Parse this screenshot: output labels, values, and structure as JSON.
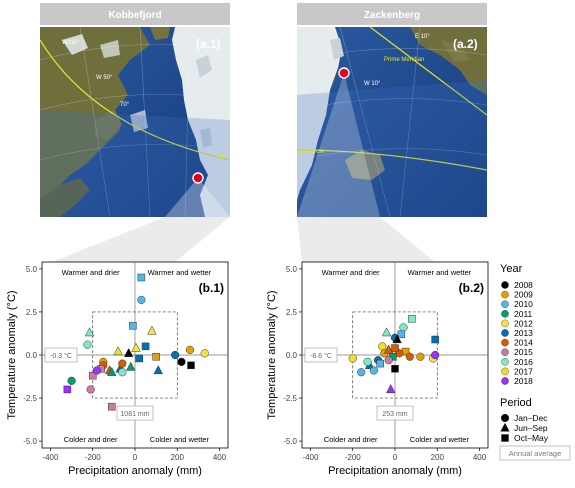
{
  "colors": {
    "years": {
      "2008": "#000000",
      "2009": "#e69f00",
      "2010": "#56b4e9",
      "2011": "#009e73",
      "2012": "#f0e442",
      "2013": "#0072b2",
      "2014": "#d55e00",
      "2015": "#cc79a7",
      "2016": "#7ee8c8",
      "2017": "#f0e020",
      "2018": "#9b30ff"
    },
    "site_marker": "#e8001c",
    "strip": "#c8c8c8",
    "map_land": "#6e6f3d",
    "map_sea": "#1d4a8c",
    "map_ice": "#e6ebee",
    "lines": "#e6e62c"
  },
  "panels": [
    {
      "site": "Kobbefjord",
      "map_label": "(a.1)",
      "map_annotations": [
        "W110°",
        "W 50°",
        "70°",
        "An"
      ],
      "chart_label": "(b.1)",
      "avg_temperature": "-0.3 °C",
      "avg_precipitation": "1081 mm",
      "map_type": "greenland_west"
    },
    {
      "site": "Zackenberg",
      "map_label": "(a.2)",
      "map_annotations": [
        "E 10°",
        "Prime Meridian",
        "W 10°",
        "ctic Circle"
      ],
      "chart_label": "(b.2)",
      "avg_temperature": "-8.6 °C",
      "avg_precipitation": "253 mm",
      "map_type": "greenland_east"
    }
  ],
  "quadrant_labels": {
    "top_left": "Warmer and drier",
    "top_right": "Warmer and wetter",
    "bottom_left": "Colder and drier",
    "bottom_right": "Colder and wetter"
  },
  "legend": {
    "year_title": "Year",
    "years": [
      "2008",
      "2009",
      "2010",
      "2011",
      "2012",
      "2013",
      "2014",
      "2015",
      "2016",
      "2017",
      "2018"
    ],
    "period_title": "Period",
    "periods": [
      {
        "label": "Jan–Dec",
        "shape": "circle"
      },
      {
        "label": "Jun–Sep",
        "shape": "triangle"
      },
      {
        "label": "Oct–May",
        "shape": "square"
      }
    ],
    "annual_average": "Annual average"
  },
  "chart_data": [
    {
      "type": "scatter",
      "site": "Kobbefjord",
      "xlabel": "Precipitation anomaly (mm)",
      "ylabel": "Temperature anomaly (°C)",
      "xlim": [
        -440,
        440
      ],
      "ylim": [
        -5.4,
        5.4
      ],
      "xticks": [
        -400,
        -200,
        0,
        200,
        400
      ],
      "yticks": [
        -5.0,
        -2.5,
        0.0,
        2.5,
        5.0
      ],
      "ytick_labels": [
        "-5.0",
        "-2.5",
        "0.0",
        "2.5",
        "5.0"
      ],
      "xtick_labels": [
        "-400",
        "-200",
        "0",
        "200",
        "400"
      ],
      "avg_box": {
        "x": [
          -200,
          200
        ],
        "y": [
          -2.5,
          2.5
        ]
      },
      "points": [
        {
          "year": "2016",
          "shape": "triangle",
          "x": -215,
          "y": 1.3
        },
        {
          "year": "2016",
          "shape": "circle",
          "x": -225,
          "y": 0.6
        },
        {
          "year": "2010",
          "shape": "square",
          "x": -10,
          "y": 1.7
        },
        {
          "year": "2010",
          "shape": "square",
          "x": 30,
          "y": 4.5
        },
        {
          "year": "2010",
          "shape": "circle",
          "x": 30,
          "y": 3.2
        },
        {
          "year": "2017",
          "shape": "triangle",
          "x": -80,
          "y": 0.2
        },
        {
          "year": "2008",
          "shape": "triangle",
          "x": -30,
          "y": 0.1
        },
        {
          "year": "2012",
          "shape": "triangle",
          "x": 5,
          "y": 0.4
        },
        {
          "year": "2012",
          "shape": "triangle",
          "x": 80,
          "y": 1.4
        },
        {
          "year": "2012",
          "shape": "circle",
          "x": 330,
          "y": 0.1
        },
        {
          "year": "2009",
          "shape": "circle",
          "x": -150,
          "y": -0.4
        },
        {
          "year": "2009",
          "shape": "square",
          "x": 100,
          "y": -0.1
        },
        {
          "year": "2009",
          "shape": "circle",
          "x": 260,
          "y": 0.3
        },
        {
          "year": "2013",
          "shape": "square",
          "x": 50,
          "y": 0.5
        },
        {
          "year": "2013",
          "shape": "square",
          "x": 20,
          "y": -0.2
        },
        {
          "year": "2013",
          "shape": "triangle",
          "x": -70,
          "y": -0.8
        },
        {
          "year": "2013",
          "shape": "triangle",
          "x": 110,
          "y": -0.9
        },
        {
          "year": "2013",
          "shape": "circle",
          "x": 190,
          "y": 0.0
        },
        {
          "year": "2014",
          "shape": "circle",
          "x": -150,
          "y": -0.6
        },
        {
          "year": "2014",
          "shape": "triangle",
          "x": -120,
          "y": -0.9
        },
        {
          "year": "2014",
          "shape": "circle",
          "x": -60,
          "y": -0.5
        },
        {
          "year": "2011",
          "shape": "circle",
          "x": -300,
          "y": -1.5
        },
        {
          "year": "2011",
          "shape": "triangle",
          "x": -110,
          "y": -1.0
        },
        {
          "year": "2011",
          "shape": "triangle",
          "x": -20,
          "y": -0.7
        },
        {
          "year": "2015",
          "shape": "square",
          "x": -200,
          "y": -1.2
        },
        {
          "year": "2015",
          "shape": "circle",
          "x": -210,
          "y": -2.0
        },
        {
          "year": "2015",
          "shape": "square",
          "x": -110,
          "y": -3.0
        },
        {
          "year": "2015",
          "shape": "square",
          "x": -160,
          "y": -0.8
        },
        {
          "year": "2018",
          "shape": "square",
          "x": -320,
          "y": -2.0
        },
        {
          "year": "2018",
          "shape": "circle",
          "x": -180,
          "y": -0.9
        },
        {
          "year": "2008",
          "shape": "circle",
          "x": 220,
          "y": -0.4
        },
        {
          "year": "2008",
          "shape": "square",
          "x": 265,
          "y": -0.6
        },
        {
          "year": "2016",
          "shape": "circle",
          "x": -60,
          "y": -1.0
        }
      ]
    },
    {
      "type": "scatter",
      "site": "Zackenberg",
      "xlabel": "Precipitation anomaly (mm)",
      "ylabel": "Temperature anomaly (°C)",
      "xlim": [
        -440,
        440
      ],
      "ylim": [
        -5.4,
        5.4
      ],
      "xticks": [
        -400,
        -200,
        0,
        200,
        400
      ],
      "yticks": [
        -5.0,
        -2.5,
        0.0,
        2.5,
        5.0
      ],
      "ytick_labels": [
        "-5.0",
        "-2.5",
        "0.0",
        "2.5",
        "5.0"
      ],
      "xtick_labels": [
        "-400",
        "-200",
        "0",
        "200",
        "400"
      ],
      "avg_box": {
        "x": [
          -200,
          200
        ],
        "y": [
          -2.5,
          2.5
        ]
      },
      "points": [
        {
          "year": "2016",
          "shape": "triangle",
          "x": -40,
          "y": 1.3
        },
        {
          "year": "2016",
          "shape": "square",
          "x": 80,
          "y": 2.1
        },
        {
          "year": "2016",
          "shape": "circle",
          "x": 40,
          "y": 1.6
        },
        {
          "year": "2010",
          "shape": "square",
          "x": 30,
          "y": 1.2
        },
        {
          "year": "2013",
          "shape": "circle",
          "x": 0,
          "y": 1.0
        },
        {
          "year": "2008",
          "shape": "triangle",
          "x": 10,
          "y": 0.9
        },
        {
          "year": "2017",
          "shape": "circle",
          "x": -60,
          "y": 0.5
        },
        {
          "year": "2017",
          "shape": "circle",
          "x": -200,
          "y": -0.2
        },
        {
          "year": "2012",
          "shape": "circle",
          "x": 180,
          "y": -0.2
        },
        {
          "year": "2009",
          "shape": "circle",
          "x": -50,
          "y": 0.1
        },
        {
          "year": "2009",
          "shape": "square",
          "x": 50,
          "y": 0.2
        },
        {
          "year": "2009",
          "shape": "circle",
          "x": 120,
          "y": -0.1
        },
        {
          "year": "2013",
          "shape": "square",
          "x": 190,
          "y": 0.9
        },
        {
          "year": "2013",
          "shape": "circle",
          "x": -80,
          "y": -0.3
        },
        {
          "year": "2013",
          "shape": "triangle",
          "x": -120,
          "y": -0.6
        },
        {
          "year": "2014",
          "shape": "triangle",
          "x": -30,
          "y": 0.3
        },
        {
          "year": "2014",
          "shape": "circle",
          "x": 20,
          "y": 0.1
        },
        {
          "year": "2014",
          "shape": "circle",
          "x": 70,
          "y": -0.1
        },
        {
          "year": "2014",
          "shape": "square",
          "x": 0,
          "y": 0.4
        },
        {
          "year": "2011",
          "shape": "square",
          "x": -10,
          "y": -0.1
        },
        {
          "year": "2010",
          "shape": "circle",
          "x": -160,
          "y": -1.0
        },
        {
          "year": "2010",
          "shape": "circle",
          "x": -100,
          "y": -0.9
        },
        {
          "year": "2010",
          "shape": "square",
          "x": -70,
          "y": -0.5
        },
        {
          "year": "2015",
          "shape": "circle",
          "x": -30,
          "y": -0.3
        },
        {
          "year": "2018",
          "shape": "triangle",
          "x": -20,
          "y": -2.0
        },
        {
          "year": "2018",
          "shape": "circle",
          "x": 190,
          "y": 0.0
        },
        {
          "year": "2008",
          "shape": "square",
          "x": 0,
          "y": -0.8
        },
        {
          "year": "2016",
          "shape": "circle",
          "x": -130,
          "y": -0.4
        }
      ]
    }
  ]
}
